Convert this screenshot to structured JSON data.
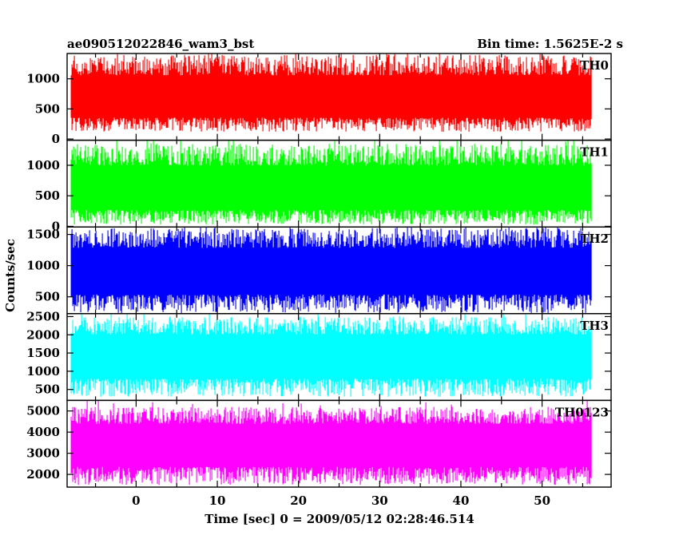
{
  "title_left": "ae090512022846_wam3_bst",
  "title_right": "Bin time: 1.5625E-2 s",
  "xlabel": "Time [sec] 0 = 2009/05/12 02:28:46.514",
  "ylabel": "Counts/sec",
  "chart_data": {
    "type": "line",
    "xlim": [
      -8.5,
      58.5
    ],
    "x_ticks": [
      "0",
      "10",
      "20",
      "30",
      "40",
      "50"
    ],
    "x_tick_values": [
      0,
      10,
      20,
      30,
      40,
      50
    ],
    "data_x_range": [
      -8.0,
      56.0
    ],
    "panels": [
      {
        "name": "TH0",
        "color": "#ff0000",
        "ylim": [
          -20,
          1420
        ],
        "y_ticks": [
          "0",
          "500",
          "1000"
        ],
        "y_tick_values": [
          0,
          500,
          1000
        ],
        "baseline_mean": 640,
        "range_low": 120,
        "range_high": 1400
      },
      {
        "name": "TH1",
        "color": "#00ff00",
        "ylim": [
          -10,
          1410
        ],
        "y_ticks": [
          "0",
          "500",
          "1000"
        ],
        "y_tick_values": [
          0,
          500,
          1000
        ],
        "baseline_mean": 560,
        "range_low": 30,
        "range_high": 1350
      },
      {
        "name": "TH2",
        "color": "#0000ff",
        "ylim": [
          230,
          1620
        ],
        "y_ticks": [
          "500",
          "1000",
          "1500"
        ],
        "y_tick_values": [
          500,
          1000,
          1500
        ],
        "baseline_mean": 900,
        "range_low": 240,
        "range_high": 1600
      },
      {
        "name": "TH3",
        "color": "#00ffff",
        "ylim": [
          200,
          2580
        ],
        "y_ticks": [
          "500",
          "1000",
          "1500",
          "2000",
          "2500"
        ],
        "y_tick_values": [
          500,
          1000,
          1500,
          2000,
          2500
        ],
        "baseline_mean": 1400,
        "range_low": 300,
        "range_high": 2500
      },
      {
        "name": "TH0123",
        "color": "#ff00ff",
        "ylim": [
          1400,
          5500
        ],
        "y_ticks": [
          "2000",
          "3000",
          "4000",
          "5000"
        ],
        "y_tick_values": [
          2000,
          3000,
          4000,
          5000
        ],
        "baseline_mean": 3400,
        "range_low": 1500,
        "range_high": 5200
      }
    ]
  }
}
